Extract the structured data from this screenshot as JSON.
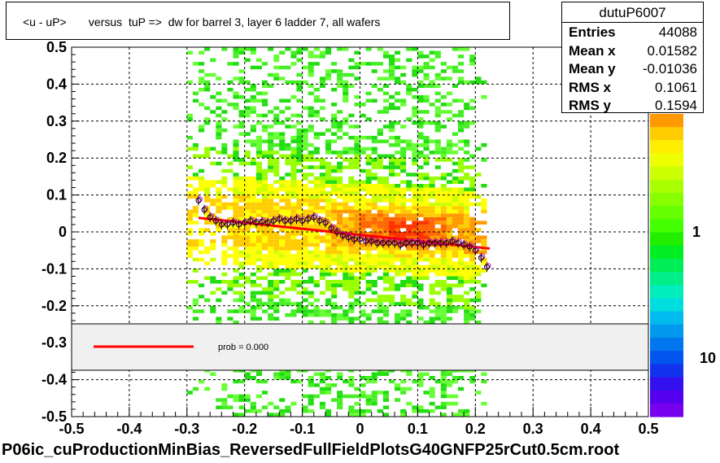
{
  "title": "<u - uP>       versus  tuP =>  dw for barrel 3, layer 6 ladder 7, all wafers",
  "stats": {
    "name": "dutuP6007",
    "rows": [
      {
        "label": "Entries",
        "value": "44088"
      },
      {
        "label": "Mean x",
        "value": "0.01582"
      },
      {
        "label": "Mean y",
        "value": "-0.01036"
      },
      {
        "label": "RMS x",
        "value": "0.1061"
      },
      {
        "label": "RMS y",
        "value": "0.1594"
      }
    ]
  },
  "footer": "P06ic_cuProductionMinBias_ReversedFullFieldPlotsG40GNFP25rCut0.5cm.root",
  "legend": {
    "text": "prob = 0.000"
  },
  "colorbar": {
    "labels": [
      "1",
      "10"
    ]
  },
  "colors": {
    "fit_line": "#ff0000",
    "legend_bg": "#f0f0f0",
    "profile_black": "#000000",
    "profile_magenta": "#cc00cc"
  },
  "chart_data": {
    "type": "heatmap",
    "title": "<u - uP>       versus  tuP =>  dw for barrel 3, layer 6 ladder 7, all wafers",
    "xlim": [
      -0.5,
      0.5
    ],
    "ylim": [
      -0.5,
      0.5
    ],
    "x_ticks": [
      "-0.5",
      "-0.4",
      "-0.3",
      "-0.2",
      "-0.1",
      "0",
      "0.1",
      "0.2",
      "0.3",
      "0.4",
      "0.5"
    ],
    "y_ticks": [
      "-0.5",
      "-0.4",
      "-0.3",
      "-0.2",
      "-0.1",
      "0",
      "0.1",
      "0.2",
      "0.3",
      "0.4",
      "0.5"
    ],
    "grid": true,
    "log_z": true,
    "fit_line": {
      "x": [
        -0.28,
        0.225
      ],
      "y": [
        0.038,
        -0.045
      ]
    },
    "profile": {
      "x": [
        -0.28,
        -0.27,
        -0.26,
        -0.25,
        -0.24,
        -0.23,
        -0.22,
        -0.21,
        -0.2,
        -0.19,
        -0.18,
        -0.17,
        -0.16,
        -0.15,
        -0.14,
        -0.13,
        -0.12,
        -0.11,
        -0.1,
        -0.09,
        -0.08,
        -0.07,
        -0.06,
        -0.05,
        -0.04,
        -0.03,
        -0.02,
        -0.01,
        0.0,
        0.01,
        0.02,
        0.03,
        0.04,
        0.05,
        0.06,
        0.07,
        0.08,
        0.09,
        0.1,
        0.11,
        0.12,
        0.13,
        0.14,
        0.15,
        0.16,
        0.17,
        0.18,
        0.19,
        0.2,
        0.21,
        0.22
      ],
      "y": [
        0.085,
        0.06,
        0.04,
        0.03,
        0.02,
        0.02,
        0.025,
        0.02,
        0.025,
        0.03,
        0.025,
        0.028,
        0.025,
        0.03,
        0.035,
        0.03,
        0.03,
        0.035,
        0.03,
        0.035,
        0.04,
        0.03,
        0.025,
        0.01,
        0.0,
        -0.01,
        -0.015,
        -0.02,
        -0.02,
        -0.025,
        -0.025,
        -0.03,
        -0.03,
        -0.03,
        -0.03,
        -0.035,
        -0.03,
        -0.03,
        -0.03,
        -0.035,
        -0.03,
        -0.03,
        -0.03,
        -0.03,
        -0.025,
        -0.03,
        -0.035,
        -0.04,
        -0.05,
        -0.07,
        -0.095
      ]
    }
  }
}
